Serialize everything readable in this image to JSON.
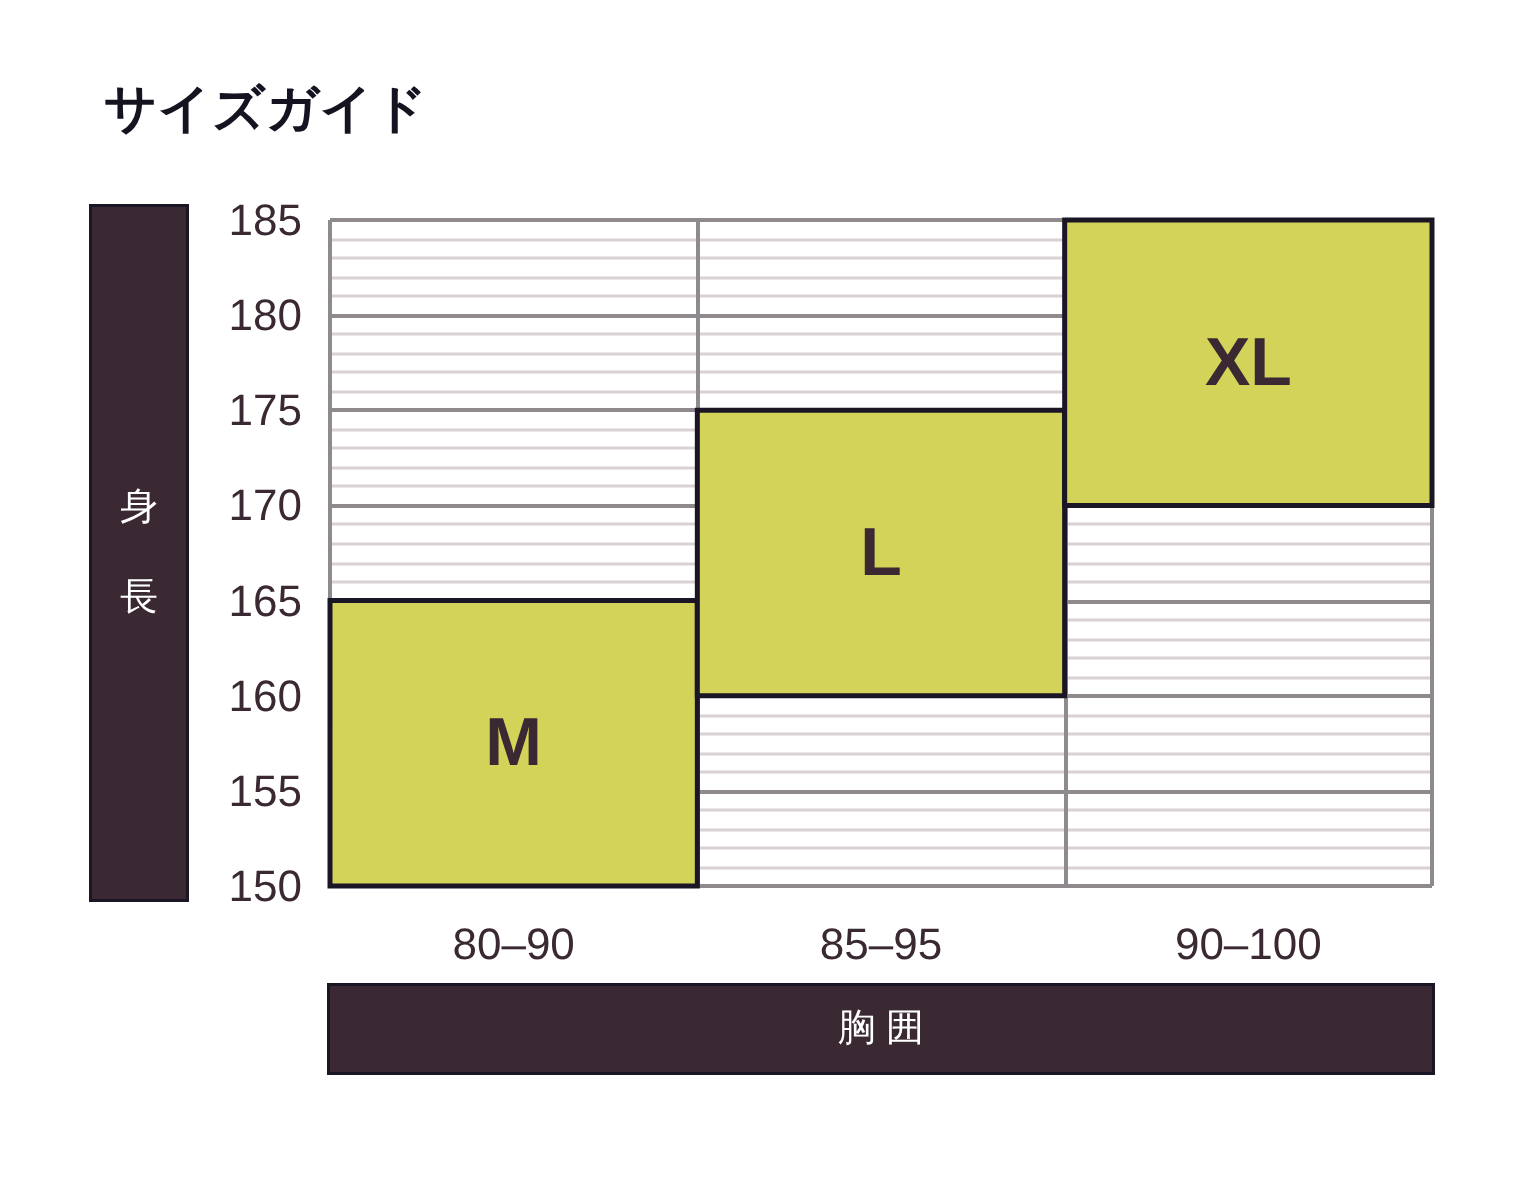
{
  "chart_data": {
    "type": "bar",
    "title": "サイズガイド",
    "xlabel": "胸 囲",
    "ylabel": "身長",
    "categories": [
      "80–90",
      "85–95",
      "90–100"
    ],
    "base": [
      150,
      160,
      170
    ],
    "values": [
      15,
      15,
      15
    ],
    "value_labels": [
      "M",
      "L",
      "XL"
    ],
    "color": "#d3d35a",
    "ylim": [
      150,
      185
    ],
    "yticks": [
      150,
      155,
      160,
      165,
      170,
      175,
      180,
      185
    ],
    "grid": true
  }
}
